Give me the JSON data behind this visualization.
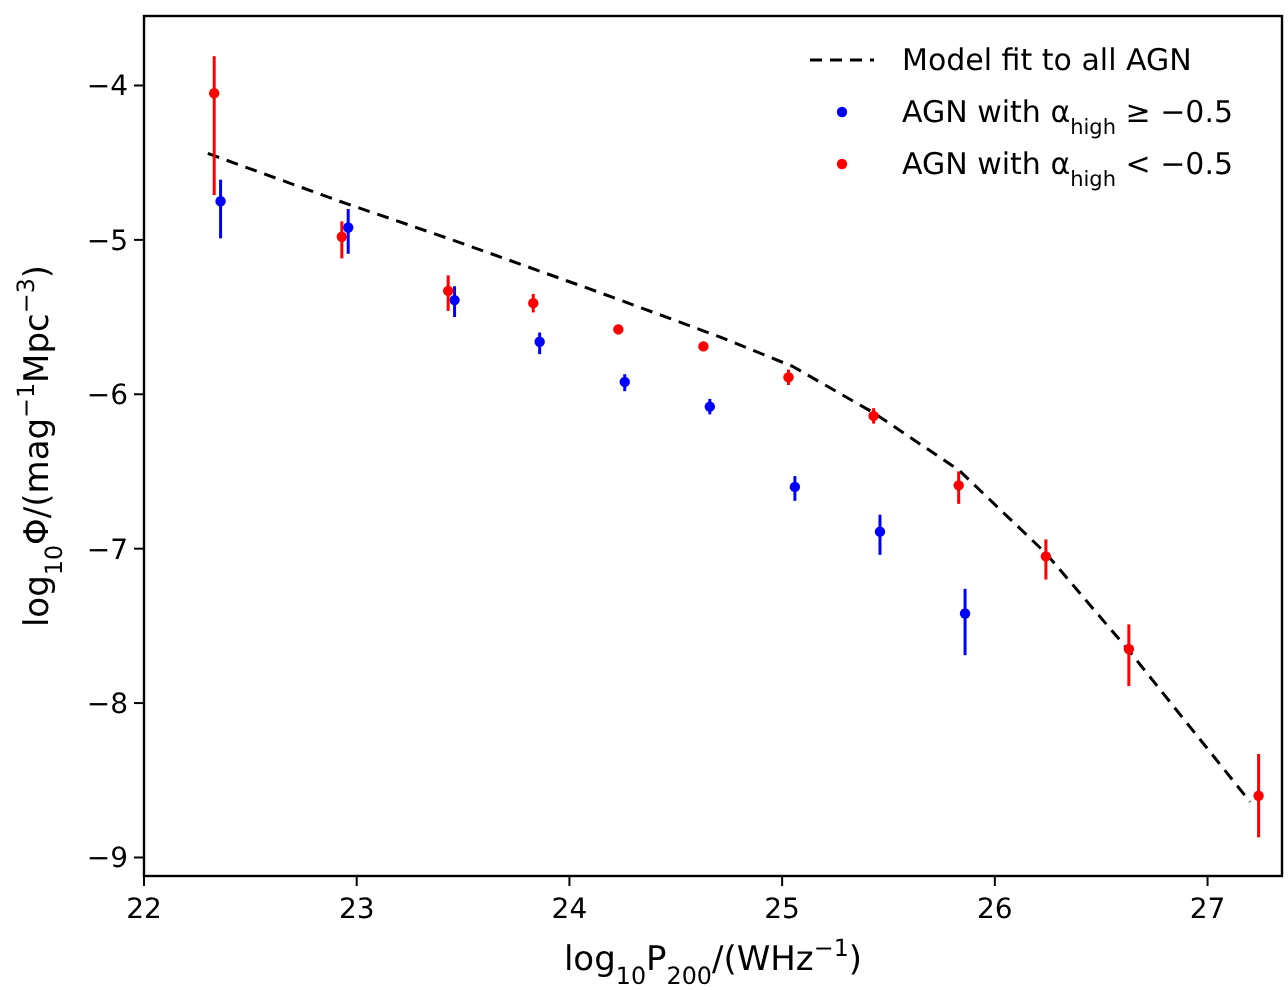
{
  "chart_data": {
    "type": "scatter",
    "xlabel": "log$_{10}$P$_{200}$/(WHz$^{−1}$)",
    "ylabel": "log$_{10}$Φ/(mag$^{−1}$Mpc$^{−3}$)",
    "xlim": [
      22,
      27.35
    ],
    "ylim": [
      -9.12,
      -3.55
    ],
    "xticks": [
      22,
      23,
      24,
      25,
      26,
      27
    ],
    "yticks": [
      {
        "value": -9,
        "label": "−9"
      },
      {
        "value": -8,
        "label": "−8"
      },
      {
        "value": -7,
        "label": "−7"
      },
      {
        "value": -6,
        "label": "−6"
      },
      {
        "value": -5,
        "label": "−5"
      },
      {
        "value": -4,
        "label": "−4"
      }
    ],
    "grid": false,
    "legend": "top right",
    "series": [
      {
        "name": "Model fit to all AGN",
        "type": "line",
        "color": "#000000",
        "marker": "none",
        "line_style": "dashed",
        "x": [
          22.3,
          22.92,
          23.45,
          24.14,
          24.71,
          25.05,
          25.43,
          25.83,
          26.24,
          26.63,
          27.2
        ],
        "values": [
          -4.44,
          -4.75,
          -5.0,
          -5.34,
          -5.63,
          -5.82,
          -6.12,
          -6.49,
          -7.03,
          -7.66,
          -8.64
        ]
      },
      {
        "name": "AGN with α$_{high}$ ≥ −0.5",
        "color": "#0000ff",
        "marker": "circle",
        "x": [
          22.36,
          22.96,
          23.46,
          23.86,
          24.26,
          24.66,
          25.06,
          25.46,
          25.86
        ],
        "values": [
          -4.75,
          -4.92,
          -5.39,
          -5.66,
          -5.92,
          -6.08,
          -6.6,
          -6.89,
          -7.42
        ],
        "errors": [
          [
            -4.99,
            -4.61
          ],
          [
            -5.09,
            -4.8
          ],
          [
            -5.5,
            -5.3
          ],
          [
            -5.74,
            -5.6
          ],
          [
            -5.98,
            -5.87
          ],
          [
            -6.13,
            -6.03
          ],
          [
            -6.69,
            -6.53
          ],
          [
            -7.04,
            -6.78
          ],
          [
            -7.69,
            -7.26
          ]
        ]
      },
      {
        "name": "AGN with α$_{high}$ < −0.5",
        "color": "#ff0000",
        "marker": "circle",
        "x": [
          22.33,
          22.93,
          23.43,
          23.83,
          24.23,
          24.63,
          25.03,
          25.43,
          25.83,
          26.24,
          26.63,
          27.24
        ],
        "values": [
          -4.05,
          -4.98,
          -5.33,
          -5.41,
          -5.58,
          -5.69,
          -5.89,
          -6.14,
          -6.59,
          -7.05,
          -7.65,
          -8.6
        ],
        "errors": [
          [
            -4.71,
            -3.81
          ],
          [
            -5.12,
            -4.88
          ],
          [
            -5.46,
            -5.23
          ],
          [
            -5.47,
            -5.35
          ],
          [
            -5.61,
            -5.55
          ],
          [
            -5.72,
            -5.66
          ],
          [
            -5.94,
            -5.84
          ],
          [
            -6.19,
            -6.09
          ],
          [
            -6.71,
            -6.5
          ],
          [
            -7.2,
            -6.94
          ],
          [
            -7.89,
            -7.49
          ],
          [
            -8.87,
            -8.33
          ]
        ]
      }
    ]
  }
}
